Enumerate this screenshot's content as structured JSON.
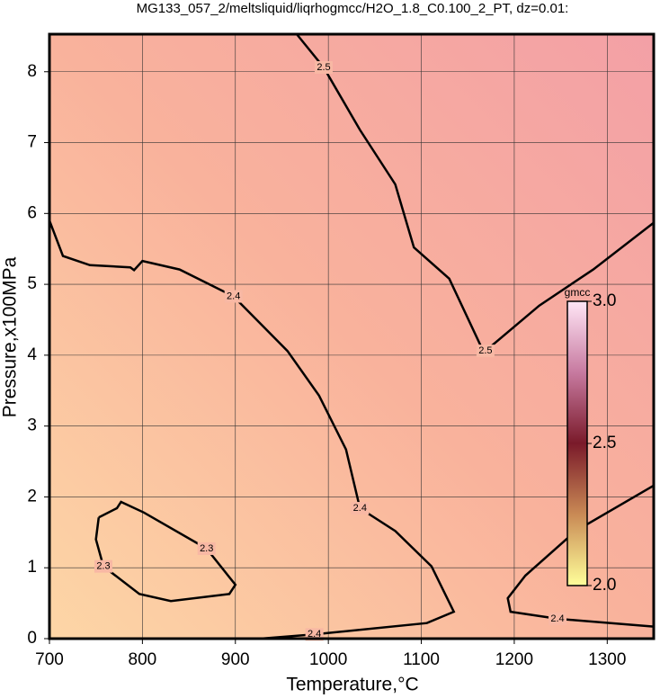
{
  "chart_data": {
    "type": "contour",
    "title": "MG133_057_2/meltsliquid/liqrhogmcc/H2O_1.8_C0.100_2_PT, dz=0.01:",
    "x_label": "Temperature,°C",
    "y_label": "Pressure,x100MPa",
    "xlim": [
      700,
      1350
    ],
    "ylim": [
      0,
      8.53
    ],
    "xticks": [
      700,
      800,
      900,
      1000,
      1100,
      1200,
      1300
    ],
    "yticks": [
      0,
      1,
      2,
      3,
      4,
      5,
      6,
      7,
      8
    ],
    "grid": true,
    "background_colors": [
      "#fdd6a6",
      "#f9b29c",
      "#f3a0a6"
    ],
    "contours": [
      {
        "level": 2.5,
        "x": [
          966,
          995,
          1034,
          1072,
          1092,
          1130,
          1164,
          1169,
          1227,
          1285,
          1350
        ],
        "y": [
          8.53,
          8.06,
          7.18,
          6.41,
          5.52,
          5.08,
          4.13,
          4.06,
          4.7,
          5.21,
          5.87
        ]
      },
      {
        "level": 2.4,
        "x": [
          700,
          714.5,
          743.5,
          787,
          791,
          800,
          840,
          898,
          956,
          990,
          1019,
          1034,
          1072,
          1111,
          1135,
          1106,
          985,
          927
        ],
        "y": [
          5.9,
          5.4,
          5.27,
          5.24,
          5.2,
          5.33,
          5.21,
          4.83,
          4.06,
          3.43,
          2.67,
          1.84,
          1.52,
          1.02,
          0.38,
          0.22,
          0.06,
          0
        ]
      },
      {
        "level": 2.4,
        "x": [
          1350,
          1246.5,
          1196,
          1193,
          1212,
          1266,
          1350
        ],
        "y": [
          0.17,
          0.28,
          0.38,
          0.57,
          0.89,
          1.52,
          2.16
        ]
      },
      {
        "level": 2.3,
        "x": [
          753,
          772.5,
          777,
          801.6,
          869,
          900,
          893.5,
          830.6,
          796.7,
          758,
          750,
          753
        ],
        "y": [
          1.71,
          1.84,
          1.93,
          1.78,
          1.27,
          0.76,
          0.63,
          0.53,
          0.63,
          1.02,
          1.4,
          1.71
        ]
      }
    ],
    "colorbar": {
      "label": "gmcc",
      "lim": [
        2,
        3
      ],
      "ticks": [
        {
          "value": 2,
          "label": "2.0"
        },
        {
          "value": 2.5,
          "label": "2.5"
        },
        {
          "value": 3,
          "label": "3.0"
        }
      ],
      "colors": [
        "#ffff9a",
        "#c98a55",
        "#7a1a2a",
        "#c77aa0",
        "#ffe6f6"
      ]
    }
  }
}
